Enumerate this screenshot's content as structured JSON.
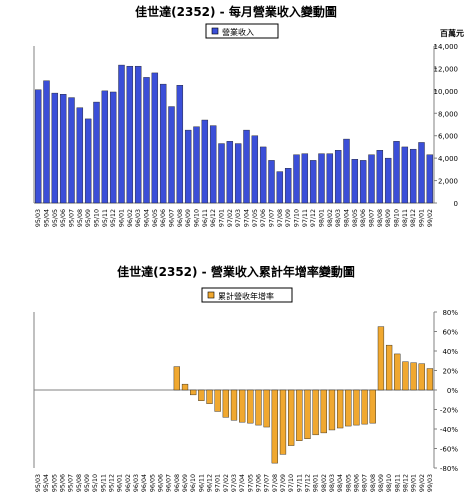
{
  "chart_data": [
    {
      "type": "bar",
      "title": "佳世達(2352) - 每月營業收入變動圖",
      "ylabel": "百萬元",
      "ylim": [
        0,
        14000
      ],
      "yticks": [
        0,
        2000,
        4000,
        6000,
        8000,
        10000,
        12000,
        14000
      ],
      "ytick_labels": [
        "0",
        "2,000",
        "4,000",
        "6,000",
        "8,000",
        "10,000",
        "12,000",
        "14,000"
      ],
      "legend": "top-center",
      "grid": false,
      "color": "#3b4fd8",
      "series": [
        {
          "name": "營業收入",
          "values": [
            10100,
            10900,
            9800,
            9700,
            9400,
            8500,
            7500,
            9000,
            10000,
            9900,
            12300,
            12200,
            12200,
            11200,
            11600,
            10600,
            8600,
            10500,
            6500,
            6800,
            7400,
            6900,
            5300,
            5500,
            5300,
            6500,
            6000,
            5000,
            3800,
            2800,
            3100,
            4300,
            4400,
            3800,
            4400,
            4400,
            4700,
            5700,
            3900,
            3800,
            4300,
            4700,
            4000,
            5500,
            5000,
            4800,
            5400,
            4300
          ]
        }
      ],
      "categories": [
        "95/03",
        "95/04",
        "95/05",
        "95/06",
        "95/07",
        "95/08",
        "95/09",
        "95/10",
        "95/11",
        "95/12",
        "96/01",
        "96/02",
        "96/03",
        "96/04",
        "96/05",
        "96/06",
        "96/07",
        "96/08",
        "96/09",
        "96/10",
        "96/11",
        "96/12",
        "97/01",
        "97/02",
        "97/03",
        "97/04",
        "97/05",
        "97/06",
        "97/07",
        "97/08",
        "97/09",
        "97/10",
        "97/11",
        "97/12",
        "98/01",
        "98/02",
        "98/03",
        "98/04",
        "98/05",
        "98/06",
        "98/07",
        "98/08",
        "98/09",
        "98/10",
        "98/11",
        "98/12",
        "99/01",
        "99/02"
      ],
      "tick_labels": [
        "95/03",
        "95/04",
        "95/05",
        "95/06",
        "95/07",
        "95/08",
        "95/09",
        "95/10",
        "95/11",
        "95/12",
        "96/01",
        "96/02",
        "96/03",
        "96/04",
        "96/05",
        "96/06",
        "96/07",
        "96/08",
        "96/09",
        "96/10",
        "96/11",
        "96/12",
        "97/01",
        "97/02",
        "97/03",
        "97/04",
        "97/05",
        "97/06",
        "97/07",
        "97/08",
        "97/09",
        "97/10",
        "97/11",
        "97/12",
        "98/01",
        "98/02",
        "98/03",
        "98/04",
        "98/05",
        "98/06",
        "98/07",
        "98/08",
        "98/09",
        "98/10",
        "98/11",
        "98/12",
        "99/01",
        "99/02"
      ]
    },
    {
      "type": "bar",
      "title": "佳世達(2352) - 營業收入累計年增率變動圖",
      "ylim": [
        -80,
        80
      ],
      "yticks": [
        -80,
        -60,
        -40,
        -20,
        0,
        20,
        40,
        60,
        80
      ],
      "ytick_labels": [
        "-80%",
        "-60%",
        "-40%",
        "-20%",
        "0%",
        "20%",
        "40%",
        "60%",
        "80%"
      ],
      "legend": "top-center",
      "grid": false,
      "color": "#f0a830",
      "series": [
        {
          "name": "累計營收年增率",
          "values": [
            0,
            0,
            0,
            0,
            0,
            0,
            0,
            0,
            0,
            0,
            0,
            0,
            0,
            0,
            0,
            0,
            0,
            24,
            6,
            -5,
            -11,
            -14,
            -22,
            -28,
            -31,
            -33,
            -34,
            -36,
            -38,
            -75,
            -66,
            -57,
            -52,
            -50,
            -46,
            -44,
            -41,
            -39,
            -37,
            -36,
            -35,
            -34,
            65,
            46,
            37,
            29,
            28,
            27,
            22
          ]
        }
      ],
      "tick_labels": [
        "95/03",
        "95/04",
        "95/05",
        "95/06",
        "95/07",
        "95/08",
        "95/09",
        "95/10",
        "95/11",
        "95/12",
        "96/01",
        "96/02",
        "96/03",
        "96/04",
        "96/05",
        "96/06",
        "96/07",
        "96/08",
        "96/09",
        "96/10",
        "96/11",
        "96/12",
        "97/01",
        "97/02",
        "97/03",
        "97/04",
        "97/05",
        "97/06",
        "97/07",
        "97/08",
        "97/09",
        "97/10",
        "97/11",
        "97/12",
        "98/01",
        "98/02",
        "98/03",
        "98/04",
        "98/05",
        "98/06",
        "98/07",
        "98/08",
        "98/09",
        "98/10",
        "98/11",
        "98/12",
        "99/01",
        "99/02",
        "99/03"
      ]
    }
  ]
}
